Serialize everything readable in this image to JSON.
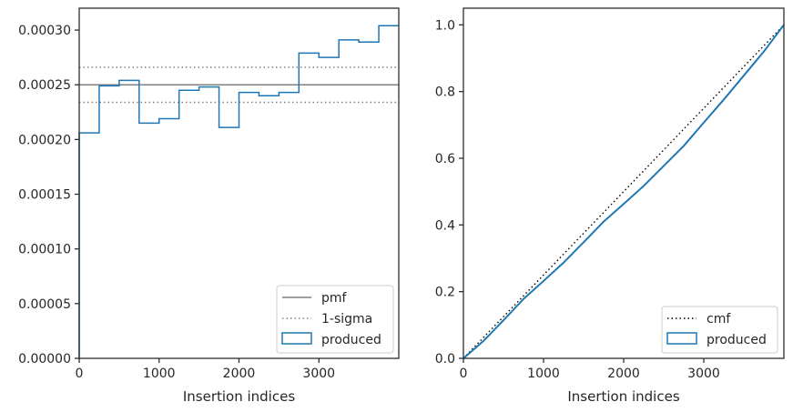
{
  "chart_data": [
    {
      "type": "step",
      "xlabel": "Insertion indices",
      "ylabel": "",
      "xlim": [
        0,
        4000
      ],
      "ylim": [
        0,
        0.00032
      ],
      "xticks": [
        0,
        1000,
        2000,
        3000
      ],
      "xtick_labels": [
        "0",
        "1000",
        "2000",
        "3000"
      ],
      "yticks": [
        0,
        5e-05,
        0.0001,
        0.00015,
        0.0002,
        0.00025,
        0.0003
      ],
      "ytick_labels": [
        "0.00000",
        "0.00005",
        "0.00010",
        "0.00015",
        "0.00020",
        "0.00025",
        "0.00030"
      ],
      "bin_edges": [
        0,
        250,
        500,
        750,
        1000,
        1250,
        1500,
        1750,
        2000,
        2250,
        2500,
        2750,
        3000,
        3250,
        3500,
        3750,
        4000
      ],
      "series": [
        {
          "name": "produced",
          "color": "#1f77b4",
          "style": "step-outline",
          "values": [
            0.000206,
            0.000249,
            0.000254,
            0.000215,
            0.000219,
            0.000245,
            0.000248,
            0.000211,
            0.000243,
            0.00024,
            0.000243,
            0.000279,
            0.000275,
            0.000291,
            0.000289,
            0.000304
          ]
        }
      ],
      "reference_lines": [
        {
          "name": "pmf",
          "value": 0.00025,
          "color": "#808080",
          "style": "solid"
        },
        {
          "name": "1-sigma",
          "values": [
            0.000266,
            0.000234
          ],
          "color": "#808080",
          "style": "dotted"
        }
      ],
      "legend": {
        "position": "lower-right",
        "entries": [
          "pmf",
          "1-sigma",
          "produced"
        ]
      }
    },
    {
      "type": "line",
      "xlabel": "Insertion indices",
      "ylabel": "",
      "xlim": [
        0,
        4000
      ],
      "ylim": [
        0,
        1.05
      ],
      "xticks": [
        0,
        1000,
        2000,
        3000
      ],
      "xtick_labels": [
        "0",
        "1000",
        "2000",
        "3000"
      ],
      "yticks": [
        0,
        0.2,
        0.4,
        0.6,
        0.8,
        1.0
      ],
      "ytick_labels": [
        "0.0",
        "0.2",
        "0.4",
        "0.6",
        "0.8",
        "1.0"
      ],
      "series": [
        {
          "name": "cmf",
          "color": "#000000",
          "style": "dotted",
          "x": [
            0,
            4000
          ],
          "y": [
            0,
            1.0
          ]
        },
        {
          "name": "produced",
          "color": "#1f77b4",
          "style": "solid",
          "x": [
            0,
            250,
            500,
            750,
            1000,
            1250,
            1500,
            1750,
            2000,
            2250,
            2500,
            2750,
            3000,
            3250,
            3500,
            3750,
            4000
          ],
          "y": [
            0,
            0.052,
            0.114,
            0.178,
            0.232,
            0.287,
            0.348,
            0.41,
            0.463,
            0.517,
            0.577,
            0.637,
            0.707,
            0.776,
            0.848,
            0.92,
            1.0
          ]
        }
      ],
      "legend": {
        "position": "lower-right",
        "entries": [
          "cmf",
          "produced"
        ]
      }
    }
  ]
}
